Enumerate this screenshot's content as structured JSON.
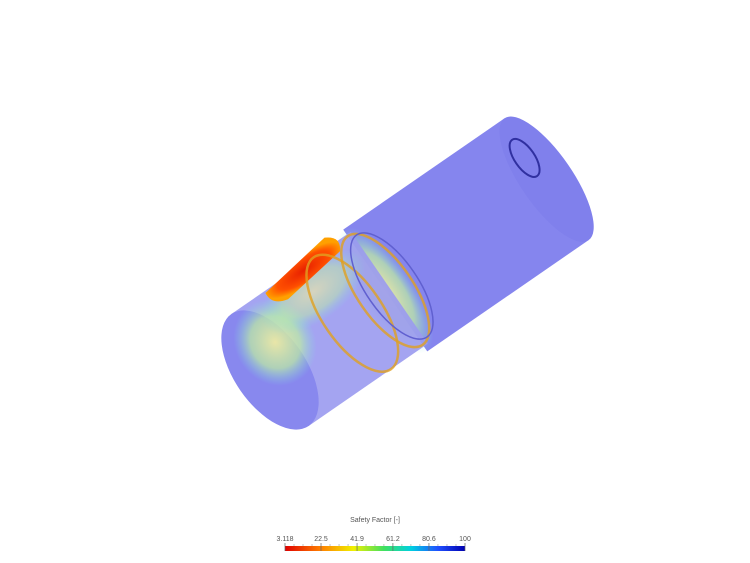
{
  "legend": {
    "title": "Safety Factor [-]",
    "ticks": [
      3.118,
      22.5,
      41.9,
      61.2,
      80.6,
      100
    ]
  }
}
